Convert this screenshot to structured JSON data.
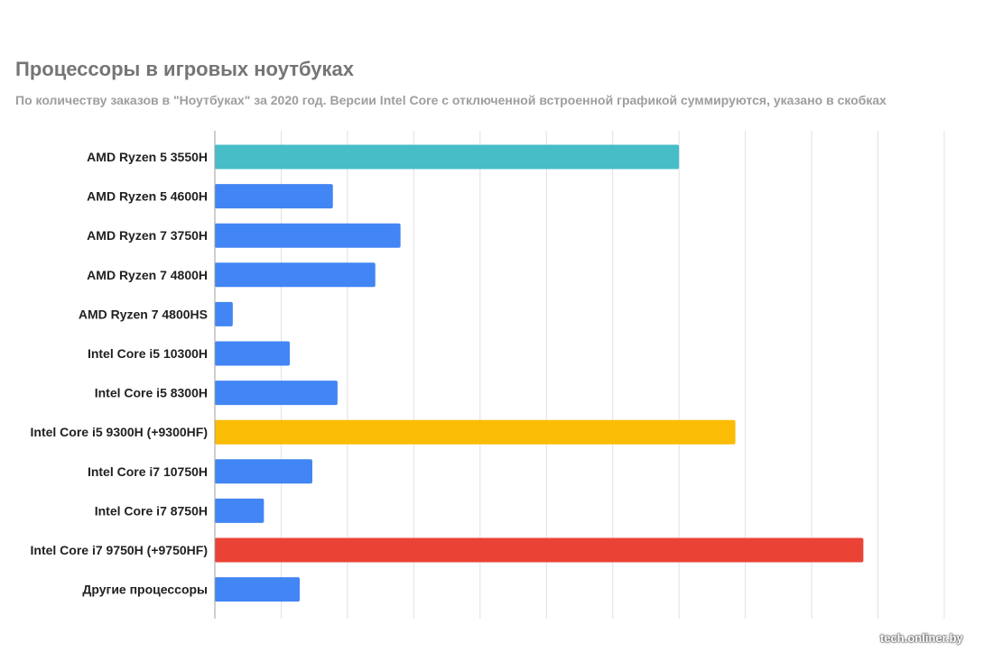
{
  "title": "Процессоры в игровых ноутбуках",
  "subtitle": "По количеству заказов в \"Ноутбуках\" за 2020 год. Версии Intel Core с отключенной встроенной графикой суммируются, указано в скобках",
  "watermark": "tech.onliner.by",
  "chart_data": {
    "type": "bar",
    "orientation": "horizontal",
    "title": "Процессоры в игровых ноутбуках",
    "subtitle": "По количеству заказов в \"Ноутбуках\" за 2020 год. Версии Intel Core с отключенной встроенной графикой суммируются, указано в скобках",
    "categories": [
      "AMD Ryzen 5 3550H",
      "AMD Ryzen 5 4600H",
      "AMD Ryzen 7 3750H",
      "AMD Ryzen 7 4800H",
      "AMD Ryzen 7 4800HS",
      "Intel Core i5 10300H",
      "Intel Core i5 8300H",
      "Intel Core i5 9300H (+9300HF)",
      "Intel Core i7 10750H",
      "Intel Core i7 8750H",
      "Intel Core i7 9750H (+9750HF)",
      "Другие процессоры"
    ],
    "values": [
      7.0,
      1.78,
      2.8,
      2.42,
      0.27,
      1.13,
      1.85,
      7.85,
      1.47,
      0.74,
      9.78,
      1.28
    ],
    "colors": [
      "#47bdc7",
      "#4285f4",
      "#4285f4",
      "#4285f4",
      "#4285f4",
      "#4285f4",
      "#4285f4",
      "#fbbc04",
      "#4285f4",
      "#4285f4",
      "#ea4335",
      "#4285f4"
    ],
    "xlim": [
      0,
      11
    ],
    "grid": true,
    "tick_labels_visible": false
  }
}
